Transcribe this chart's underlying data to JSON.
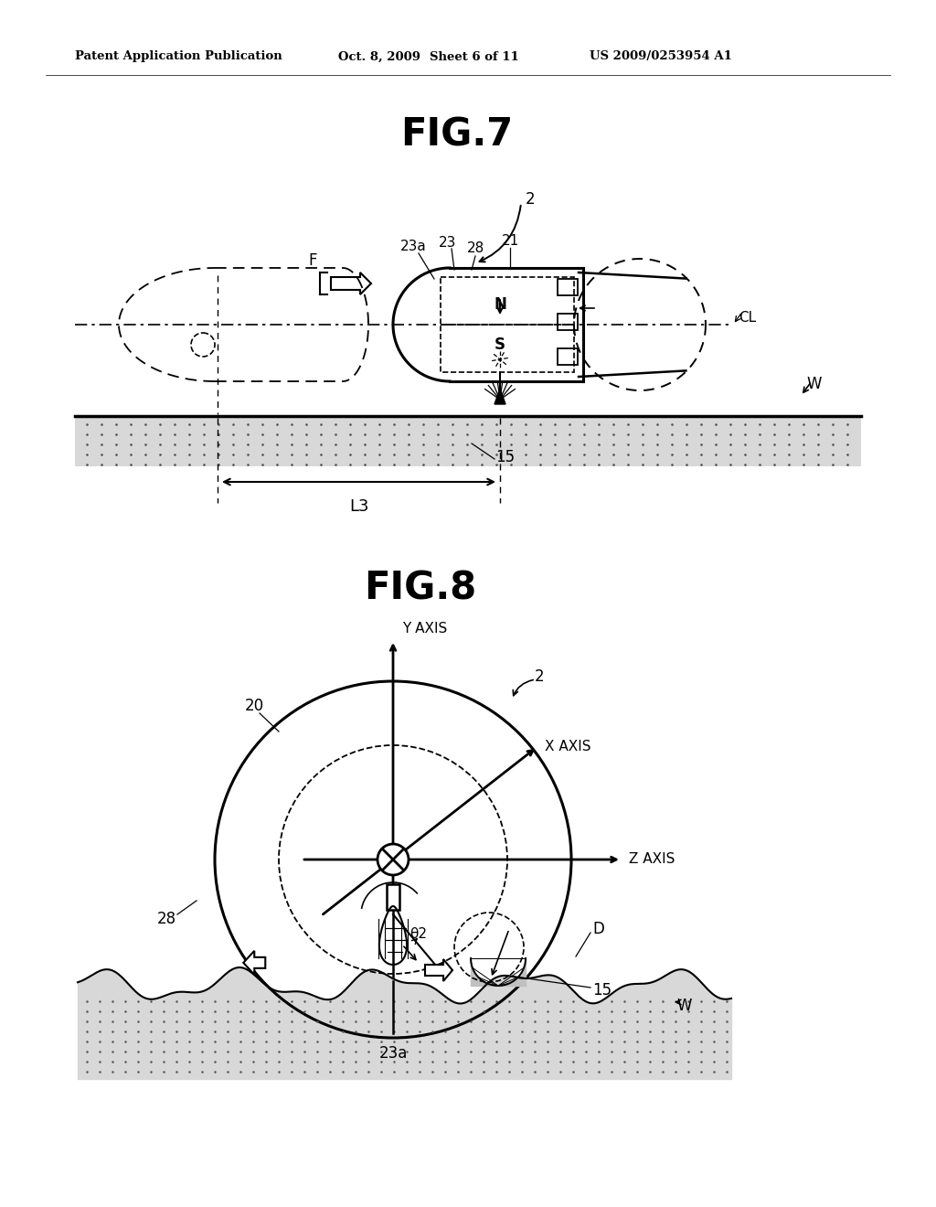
{
  "background_color": "#ffffff",
  "header_text": "Patent Application Publication",
  "header_date": "Oct. 8, 2009",
  "header_sheet": "Sheet 6 of 11",
  "header_patent": "US 2009/0253954 A1",
  "fig7_title": "FIG.7",
  "fig8_title": "FIG.8",
  "line_color": "#000000"
}
